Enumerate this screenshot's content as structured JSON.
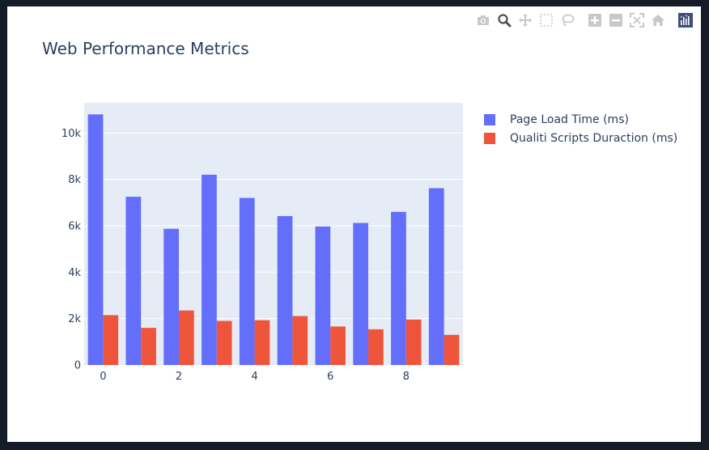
{
  "modebar": {
    "buttons": [
      {
        "name": "camera-icon",
        "color": "#c8c8c8"
      },
      {
        "name": "zoom-icon",
        "color": "#505050"
      },
      {
        "name": "pan-icon",
        "color": "#c8c8c8"
      },
      {
        "name": "box-select-icon",
        "color": "#c8c8c8"
      },
      {
        "name": "lasso-icon",
        "color": "#c8c8c8"
      },
      {
        "name": "zoom-in-icon",
        "color": "#c8c8c8"
      },
      {
        "name": "zoom-out-icon",
        "color": "#c8c8c8"
      },
      {
        "name": "autoscale-icon",
        "color": "#c8c8c8"
      },
      {
        "name": "reset-axes-icon",
        "color": "#c8c8c8"
      },
      {
        "name": "plotly-logo-icon",
        "color": "#3f4f75"
      }
    ]
  },
  "chart_data": {
    "type": "bar",
    "title": "Web Performance Metrics",
    "xlabel": "",
    "ylabel": "",
    "x": [
      0,
      1,
      2,
      3,
      4,
      5,
      6,
      7,
      8,
      9
    ],
    "x_ticks": [
      0,
      2,
      4,
      6,
      8
    ],
    "y_ticks": [
      0,
      2000,
      4000,
      6000,
      8000,
      10000
    ],
    "y_tick_labels": [
      "0",
      "2k",
      "4k",
      "6k",
      "8k",
      "10k"
    ],
    "ylim": [
      0,
      11300
    ],
    "xlim": [
      -0.5,
      9.5
    ],
    "grid": true,
    "legend_position": "top-right",
    "plot_bg": "#e5ecf6",
    "series": [
      {
        "name": "Page Load Time (ms)",
        "color": "#636efa",
        "values": [
          10800,
          7250,
          5870,
          8200,
          7200,
          6420,
          5970,
          6120,
          6600,
          7620
        ]
      },
      {
        "name": "Qualiti Scripts Duraction (ms)",
        "color": "#ef553b",
        "values": [
          2150,
          1600,
          2350,
          1900,
          1930,
          2110,
          1660,
          1540,
          1960,
          1300
        ]
      }
    ]
  }
}
